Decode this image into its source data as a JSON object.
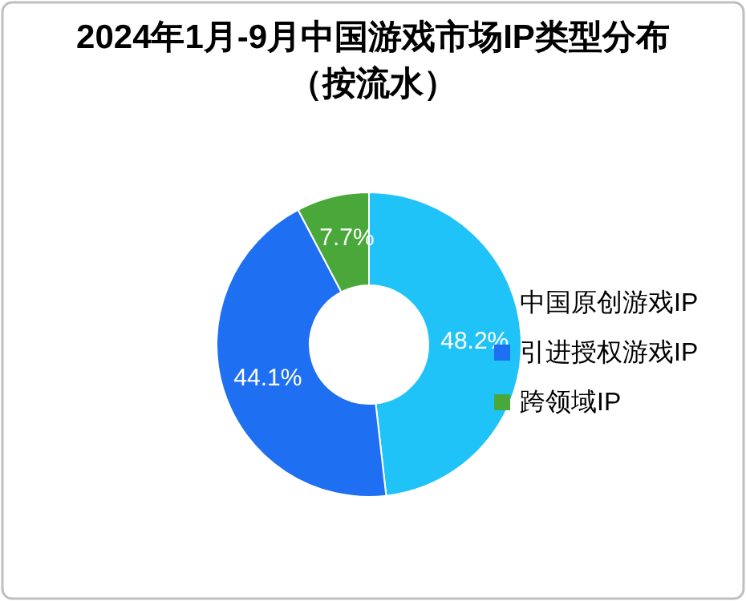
{
  "chart_data": {
    "type": "donut",
    "title": "2024年1月-9月中国游戏市场IP类型分布（按流水）",
    "categories": [
      "中国原创游戏IP",
      "引进授权游戏IP",
      "跨领域IP"
    ],
    "values": [
      48.2,
      44.1,
      7.7
    ],
    "colors": [
      "#1fc3f7",
      "#1f6ff2",
      "#4aa83a"
    ],
    "value_labels": [
      "48.2%",
      "44.1%",
      "7.7%"
    ],
    "legend": "right"
  }
}
